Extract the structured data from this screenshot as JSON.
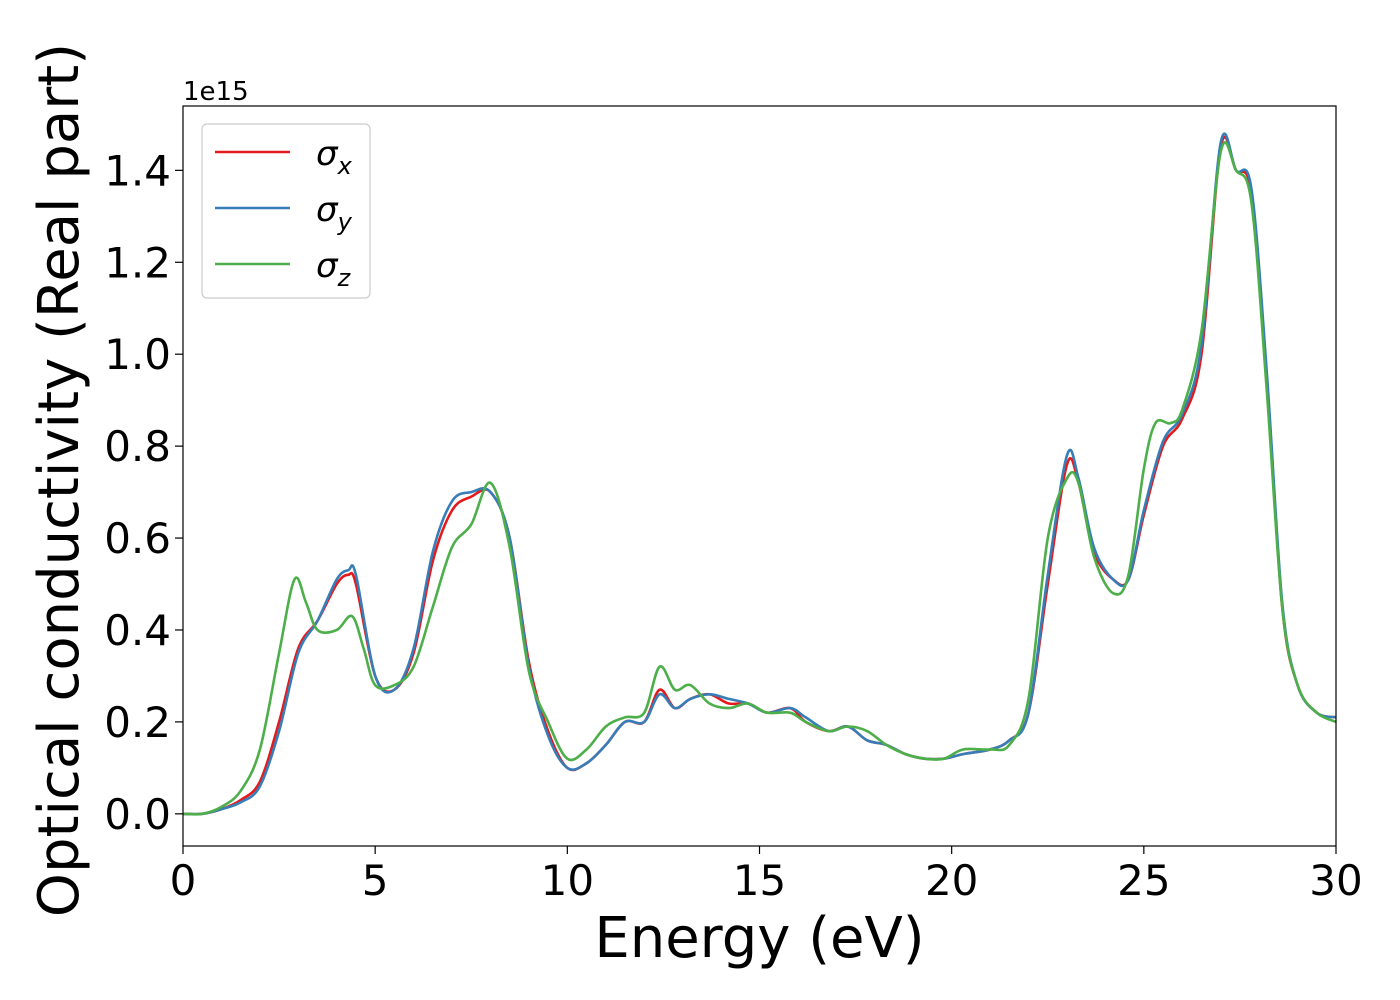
{
  "chart_data": {
    "type": "line",
    "title": "",
    "xlabel": "Energy (eV)",
    "ylabel": "Optical conductivity (Real part)",
    "y_offset_label": "1e15",
    "xlim": [
      0,
      30
    ],
    "ylim": [
      -0.07,
      1.54
    ],
    "x_ticks": [
      0,
      5,
      10,
      15,
      20,
      25,
      30
    ],
    "x_tick_labels": [
      "0",
      "5",
      "10",
      "15",
      "20",
      "25",
      "30"
    ],
    "y_ticks": [
      0.0,
      0.2,
      0.4,
      0.6,
      0.8,
      1.0,
      1.2,
      1.4
    ],
    "y_tick_labels": [
      "0.0",
      "0.2",
      "0.4",
      "0.6",
      "0.8",
      "1.0",
      "1.2",
      "1.4"
    ],
    "grid": false,
    "legend_position": "top-left",
    "series": [
      {
        "name": "σx",
        "label_base": "σ",
        "label_sub": "x",
        "color": "#e41a1c",
        "points": [
          [
            0,
            0
          ],
          [
            0.5,
            0.0
          ],
          [
            1.0,
            0.01
          ],
          [
            1.5,
            0.03
          ],
          [
            2.0,
            0.07
          ],
          [
            2.5,
            0.2
          ],
          [
            3.0,
            0.36
          ],
          [
            3.5,
            0.42
          ],
          [
            4.0,
            0.5
          ],
          [
            4.3,
            0.52
          ],
          [
            4.5,
            0.5
          ],
          [
            5.0,
            0.3
          ],
          [
            5.5,
            0.27
          ],
          [
            6.0,
            0.35
          ],
          [
            6.5,
            0.55
          ],
          [
            7.0,
            0.66
          ],
          [
            7.5,
            0.69
          ],
          [
            8.0,
            0.7
          ],
          [
            8.5,
            0.6
          ],
          [
            9.0,
            0.33
          ],
          [
            9.5,
            0.18
          ],
          [
            10.0,
            0.1
          ],
          [
            10.5,
            0.11
          ],
          [
            11.0,
            0.15
          ],
          [
            11.5,
            0.2
          ],
          [
            12.0,
            0.2
          ],
          [
            12.4,
            0.27
          ],
          [
            12.8,
            0.23
          ],
          [
            13.2,
            0.25
          ],
          [
            13.7,
            0.26
          ],
          [
            14.2,
            0.24
          ],
          [
            14.7,
            0.24
          ],
          [
            15.2,
            0.22
          ],
          [
            15.8,
            0.23
          ],
          [
            16.2,
            0.2
          ],
          [
            16.8,
            0.18
          ],
          [
            17.3,
            0.19
          ],
          [
            17.8,
            0.16
          ],
          [
            18.3,
            0.15
          ],
          [
            18.8,
            0.13
          ],
          [
            19.3,
            0.12
          ],
          [
            19.8,
            0.12
          ],
          [
            20.3,
            0.13
          ],
          [
            21.0,
            0.14
          ],
          [
            21.5,
            0.16
          ],
          [
            22.0,
            0.22
          ],
          [
            22.5,
            0.5
          ],
          [
            23.0,
            0.76
          ],
          [
            23.3,
            0.72
          ],
          [
            23.7,
            0.57
          ],
          [
            24.2,
            0.51
          ],
          [
            24.6,
            0.51
          ],
          [
            25.0,
            0.65
          ],
          [
            25.5,
            0.8
          ],
          [
            26.0,
            0.86
          ],
          [
            26.5,
            1.0
          ],
          [
            27.0,
            1.45
          ],
          [
            27.4,
            1.4
          ],
          [
            27.8,
            1.35
          ],
          [
            28.2,
            0.95
          ],
          [
            28.6,
            0.45
          ],
          [
            29.0,
            0.28
          ],
          [
            29.5,
            0.22
          ],
          [
            30.0,
            0.21
          ]
        ]
      },
      {
        "name": "σy",
        "label_base": "σ",
        "label_sub": "y",
        "color": "#377eb8",
        "points": [
          [
            0,
            0
          ],
          [
            0.5,
            0.0
          ],
          [
            1.0,
            0.01
          ],
          [
            1.5,
            0.025
          ],
          [
            2.0,
            0.06
          ],
          [
            2.5,
            0.18
          ],
          [
            3.0,
            0.35
          ],
          [
            3.5,
            0.42
          ],
          [
            4.0,
            0.51
          ],
          [
            4.3,
            0.53
          ],
          [
            4.5,
            0.52
          ],
          [
            5.0,
            0.3
          ],
          [
            5.5,
            0.27
          ],
          [
            6.0,
            0.36
          ],
          [
            6.5,
            0.57
          ],
          [
            7.0,
            0.68
          ],
          [
            7.5,
            0.7
          ],
          [
            8.0,
            0.7
          ],
          [
            8.5,
            0.6
          ],
          [
            9.0,
            0.32
          ],
          [
            9.5,
            0.17
          ],
          [
            10.0,
            0.1
          ],
          [
            10.5,
            0.11
          ],
          [
            11.0,
            0.15
          ],
          [
            11.5,
            0.2
          ],
          [
            12.0,
            0.2
          ],
          [
            12.4,
            0.26
          ],
          [
            12.8,
            0.23
          ],
          [
            13.2,
            0.25
          ],
          [
            13.7,
            0.26
          ],
          [
            14.2,
            0.25
          ],
          [
            14.7,
            0.24
          ],
          [
            15.2,
            0.22
          ],
          [
            15.8,
            0.23
          ],
          [
            16.2,
            0.21
          ],
          [
            16.8,
            0.18
          ],
          [
            17.3,
            0.19
          ],
          [
            17.8,
            0.16
          ],
          [
            18.3,
            0.15
          ],
          [
            18.8,
            0.13
          ],
          [
            19.3,
            0.12
          ],
          [
            19.8,
            0.12
          ],
          [
            20.3,
            0.13
          ],
          [
            21.0,
            0.14
          ],
          [
            21.5,
            0.16
          ],
          [
            22.0,
            0.22
          ],
          [
            22.5,
            0.52
          ],
          [
            23.0,
            0.78
          ],
          [
            23.3,
            0.73
          ],
          [
            23.7,
            0.58
          ],
          [
            24.2,
            0.51
          ],
          [
            24.6,
            0.51
          ],
          [
            25.0,
            0.66
          ],
          [
            25.5,
            0.81
          ],
          [
            26.0,
            0.87
          ],
          [
            26.5,
            1.02
          ],
          [
            27.0,
            1.46
          ],
          [
            27.4,
            1.4
          ],
          [
            27.8,
            1.36
          ],
          [
            28.2,
            0.96
          ],
          [
            28.6,
            0.46
          ],
          [
            29.0,
            0.28
          ],
          [
            29.5,
            0.22
          ],
          [
            30.0,
            0.21
          ]
        ]
      },
      {
        "name": "σz",
        "label_base": "σ",
        "label_sub": "z",
        "color": "#4daf4a",
        "points": [
          [
            0,
            0
          ],
          [
            0.5,
            0.0
          ],
          [
            1.0,
            0.015
          ],
          [
            1.5,
            0.05
          ],
          [
            2.0,
            0.14
          ],
          [
            2.5,
            0.35
          ],
          [
            2.9,
            0.51
          ],
          [
            3.2,
            0.46
          ],
          [
            3.5,
            0.4
          ],
          [
            4.0,
            0.4
          ],
          [
            4.4,
            0.43
          ],
          [
            4.7,
            0.36
          ],
          [
            5.0,
            0.28
          ],
          [
            5.5,
            0.28
          ],
          [
            6.0,
            0.32
          ],
          [
            6.5,
            0.45
          ],
          [
            7.0,
            0.58
          ],
          [
            7.5,
            0.63
          ],
          [
            8.0,
            0.72
          ],
          [
            8.5,
            0.58
          ],
          [
            9.0,
            0.31
          ],
          [
            9.5,
            0.2
          ],
          [
            10.0,
            0.12
          ],
          [
            10.5,
            0.14
          ],
          [
            11.0,
            0.19
          ],
          [
            11.5,
            0.21
          ],
          [
            12.0,
            0.22
          ],
          [
            12.4,
            0.32
          ],
          [
            12.8,
            0.27
          ],
          [
            13.2,
            0.28
          ],
          [
            13.7,
            0.24
          ],
          [
            14.2,
            0.23
          ],
          [
            14.7,
            0.24
          ],
          [
            15.2,
            0.22
          ],
          [
            15.8,
            0.22
          ],
          [
            16.2,
            0.2
          ],
          [
            16.8,
            0.18
          ],
          [
            17.3,
            0.19
          ],
          [
            17.8,
            0.18
          ],
          [
            18.3,
            0.15
          ],
          [
            18.8,
            0.13
          ],
          [
            19.3,
            0.12
          ],
          [
            19.8,
            0.12
          ],
          [
            20.3,
            0.14
          ],
          [
            21.0,
            0.14
          ],
          [
            21.5,
            0.15
          ],
          [
            22.0,
            0.25
          ],
          [
            22.5,
            0.6
          ],
          [
            23.0,
            0.73
          ],
          [
            23.3,
            0.72
          ],
          [
            23.7,
            0.56
          ],
          [
            24.2,
            0.48
          ],
          [
            24.6,
            0.52
          ],
          [
            25.0,
            0.75
          ],
          [
            25.3,
            0.85
          ],
          [
            25.7,
            0.85
          ],
          [
            26.0,
            0.88
          ],
          [
            26.5,
            1.05
          ],
          [
            27.0,
            1.44
          ],
          [
            27.4,
            1.4
          ],
          [
            27.8,
            1.33
          ],
          [
            28.2,
            0.92
          ],
          [
            28.6,
            0.45
          ],
          [
            29.0,
            0.28
          ],
          [
            29.5,
            0.22
          ],
          [
            30.0,
            0.2
          ]
        ]
      }
    ]
  }
}
